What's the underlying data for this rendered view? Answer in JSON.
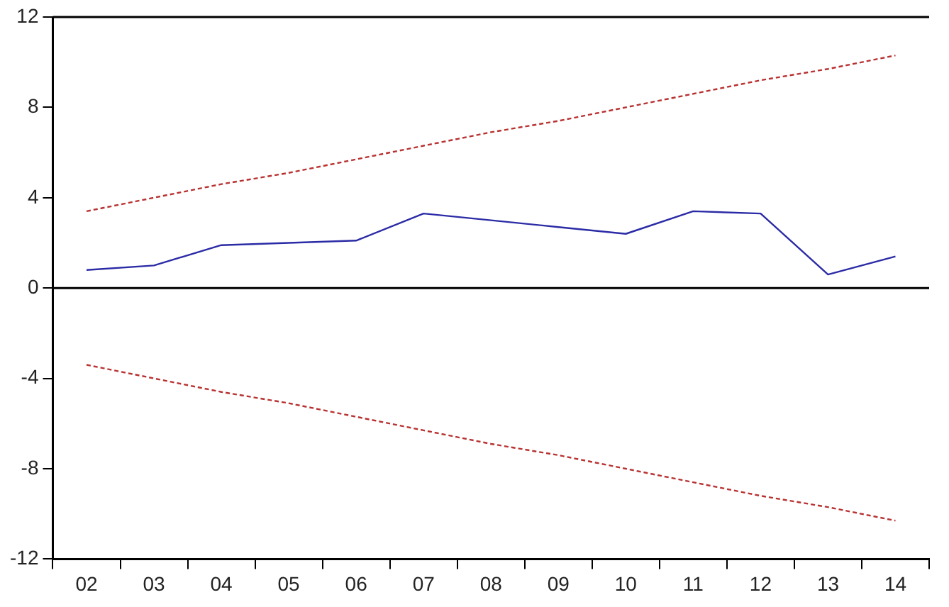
{
  "chart_data": {
    "type": "line",
    "categories": [
      "02",
      "03",
      "04",
      "05",
      "06",
      "07",
      "08",
      "09",
      "10",
      "11",
      "12",
      "13",
      "14"
    ],
    "series": [
      {
        "color": "#2b2ba6",
        "line_style": "solid",
        "values": [
          0.8,
          1.0,
          1.9,
          2.0,
          2.1,
          3.3,
          3.0,
          2.7,
          2.4,
          3.4,
          3.3,
          0.6,
          1.4
        ]
      },
      {
        "color": "#b83232",
        "line_style": "dashed",
        "values": [
          3.4,
          4.0,
          4.6,
          5.1,
          5.7,
          6.3,
          6.9,
          7.4,
          8.0,
          8.6,
          9.2,
          9.7,
          10.3
        ]
      },
      {
        "color": "#b83232",
        "line_style": "dashed",
        "values": [
          -3.4,
          -4.0,
          -4.6,
          -5.1,
          -5.7,
          -6.3,
          -6.9,
          -7.4,
          -8.0,
          -8.6,
          -9.2,
          -9.7,
          -10.3
        ]
      }
    ],
    "ylim": [
      -12,
      12
    ],
    "yticks": [
      -12,
      -8,
      -4,
      0,
      4,
      8,
      12
    ],
    "ref_lines": [
      {
        "axis": "y",
        "value": 0,
        "color": "#000000"
      }
    ],
    "grid": false,
    "legend": false,
    "marker": "none"
  }
}
